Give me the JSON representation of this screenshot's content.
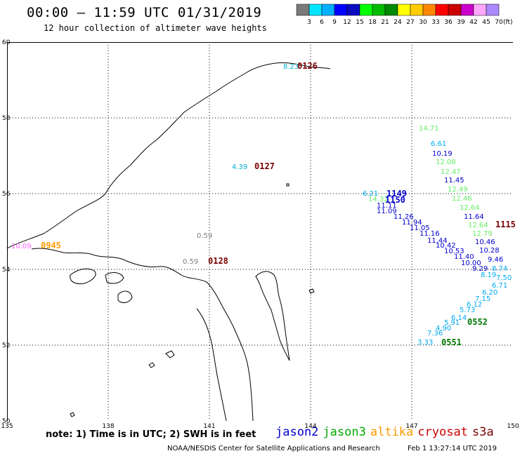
{
  "header": {
    "title": "00:00 – 11:59 UTC 01/31/2019",
    "subtitle": "12 hour collection of altimeter wave heights"
  },
  "colorbar": {
    "unit_label": "(ft)",
    "ticks": [
      "3",
      "6",
      "9",
      "12",
      "15",
      "18",
      "21",
      "24",
      "27",
      "30",
      "33",
      "36",
      "39",
      "42",
      "45",
      "70"
    ],
    "colors": [
      "#7a7a7a",
      "#00e5ff",
      "#00b0ff",
      "#0000ff",
      "#0b0bbf",
      "#00ff00",
      "#00bb00",
      "#008800",
      "#ffff00",
      "#ffcc00",
      "#ff8800",
      "#ff0000",
      "#cc0000",
      "#cc00cc",
      "#ffaaff",
      "#aa88ff"
    ]
  },
  "map": {
    "lat_labels": [
      "60",
      "58",
      "56",
      "54",
      "52",
      "50"
    ],
    "lon_labels": [
      "135",
      "138",
      "141",
      "144",
      "147",
      "150"
    ],
    "lon_range": [
      135,
      150
    ],
    "lat_range": [
      50,
      60
    ]
  },
  "observations": [
    {
      "text": "8.23",
      "color": "#00b0d0"
    },
    {
      "text": "0126",
      "color": "#7a0000",
      "stamp": true
    },
    {
      "text": "4.39",
      "color": "#00b0d0"
    },
    {
      "text": "0127",
      "color": "#7a0000",
      "stamp": true
    },
    {
      "text": "0.59",
      "color": "#808080"
    },
    {
      "text": "0.59",
      "color": "#808080"
    },
    {
      "text": "0128",
      "color": "#7a0000",
      "stamp": true
    },
    {
      "text": "10.09",
      "color": "#ff66ff"
    },
    {
      "text": "0945",
      "color": "#ff9900",
      "stamp": true
    },
    {
      "text": "14.71",
      "color": "#66ee66"
    },
    {
      "text": "6.61",
      "color": "#00aaee"
    },
    {
      "text": "10.19",
      "color": "#0000cc"
    },
    {
      "text": "12.08",
      "color": "#66ee66"
    },
    {
      "text": "12.47",
      "color": "#66ee66"
    },
    {
      "text": "11.45",
      "color": "#0000cc"
    },
    {
      "text": "12.49",
      "color": "#66ee66"
    },
    {
      "text": "12.46",
      "color": "#66ee66"
    },
    {
      "text": "12.64",
      "color": "#66ee66"
    },
    {
      "text": "6.21",
      "color": "#00aaee"
    },
    {
      "text": "1149",
      "color": "#0000cc",
      "stamp": true
    },
    {
      "text": "14.32",
      "color": "#66ee66"
    },
    {
      "text": "1150",
      "color": "#0000cc",
      "stamp": true
    },
    {
      "text": "11.11",
      "color": "#0000cc"
    },
    {
      "text": "11.09",
      "color": "#0000cc"
    },
    {
      "text": "11.26",
      "color": "#0000cc"
    },
    {
      "text": "11.64",
      "color": "#0000cc"
    },
    {
      "text": "11.94",
      "color": "#0000cc"
    },
    {
      "text": "11.05",
      "color": "#0000cc"
    },
    {
      "text": "12.64",
      "color": "#66ee66"
    },
    {
      "text": "1115",
      "color": "#7a0000",
      "stamp": true
    },
    {
      "text": "11.16",
      "color": "#0000cc"
    },
    {
      "text": "12.79",
      "color": "#66ee66"
    },
    {
      "text": "11.44",
      "color": "#0000cc"
    },
    {
      "text": "10.46",
      "color": "#0000cc"
    },
    {
      "text": "10.42",
      "color": "#0000cc"
    },
    {
      "text": "10.53",
      "color": "#0000cc"
    },
    {
      "text": "10.28",
      "color": "#0000cc"
    },
    {
      "text": "11.40",
      "color": "#0000cc"
    },
    {
      "text": "9.46",
      "color": "#0000cc"
    },
    {
      "text": "10.00",
      "color": "#0000cc"
    },
    {
      "text": "9.29",
      "color": "#0000cc"
    },
    {
      "text": "8.74",
      "color": "#00aaee"
    },
    {
      "text": "8.19",
      "color": "#00aaee"
    },
    {
      "text": "7.50",
      "color": "#00aaee"
    },
    {
      "text": "6.71",
      "color": "#00aaee"
    },
    {
      "text": "6.20",
      "color": "#00aaee"
    },
    {
      "text": "7.15",
      "color": "#00aaee"
    },
    {
      "text": "6.12",
      "color": "#00aaee"
    },
    {
      "text": "5.73",
      "color": "#00aaee"
    },
    {
      "text": "6.14",
      "color": "#00aaee"
    },
    {
      "text": "0552",
      "color": "#007700",
      "stamp": true
    },
    {
      "text": "5.91",
      "color": "#00aaee"
    },
    {
      "text": "4.90",
      "color": "#00aaee"
    },
    {
      "text": "7.36",
      "color": "#00aaee"
    },
    {
      "text": "3.33",
      "color": "#00aaee"
    },
    {
      "text": "0551",
      "color": "#007700",
      "stamp": true
    }
  ],
  "footer": {
    "note": "note: 1) Time is in UTC; 2) SWH is in feet",
    "legend": [
      {
        "name": "jason2",
        "color": "#0000cc"
      },
      {
        "name": "jason3",
        "color": "#00aa00"
      },
      {
        "name": "altika",
        "color": "#ff9900"
      },
      {
        "name": "cryosat",
        "color": "#cc0000"
      },
      {
        "name": "s3a",
        "color": "#7a0000"
      }
    ],
    "credit": "NOAA/NESDIS Center for Satellite Applications and Research",
    "generated": "Feb  1 13:27:14 UTC 2019"
  }
}
